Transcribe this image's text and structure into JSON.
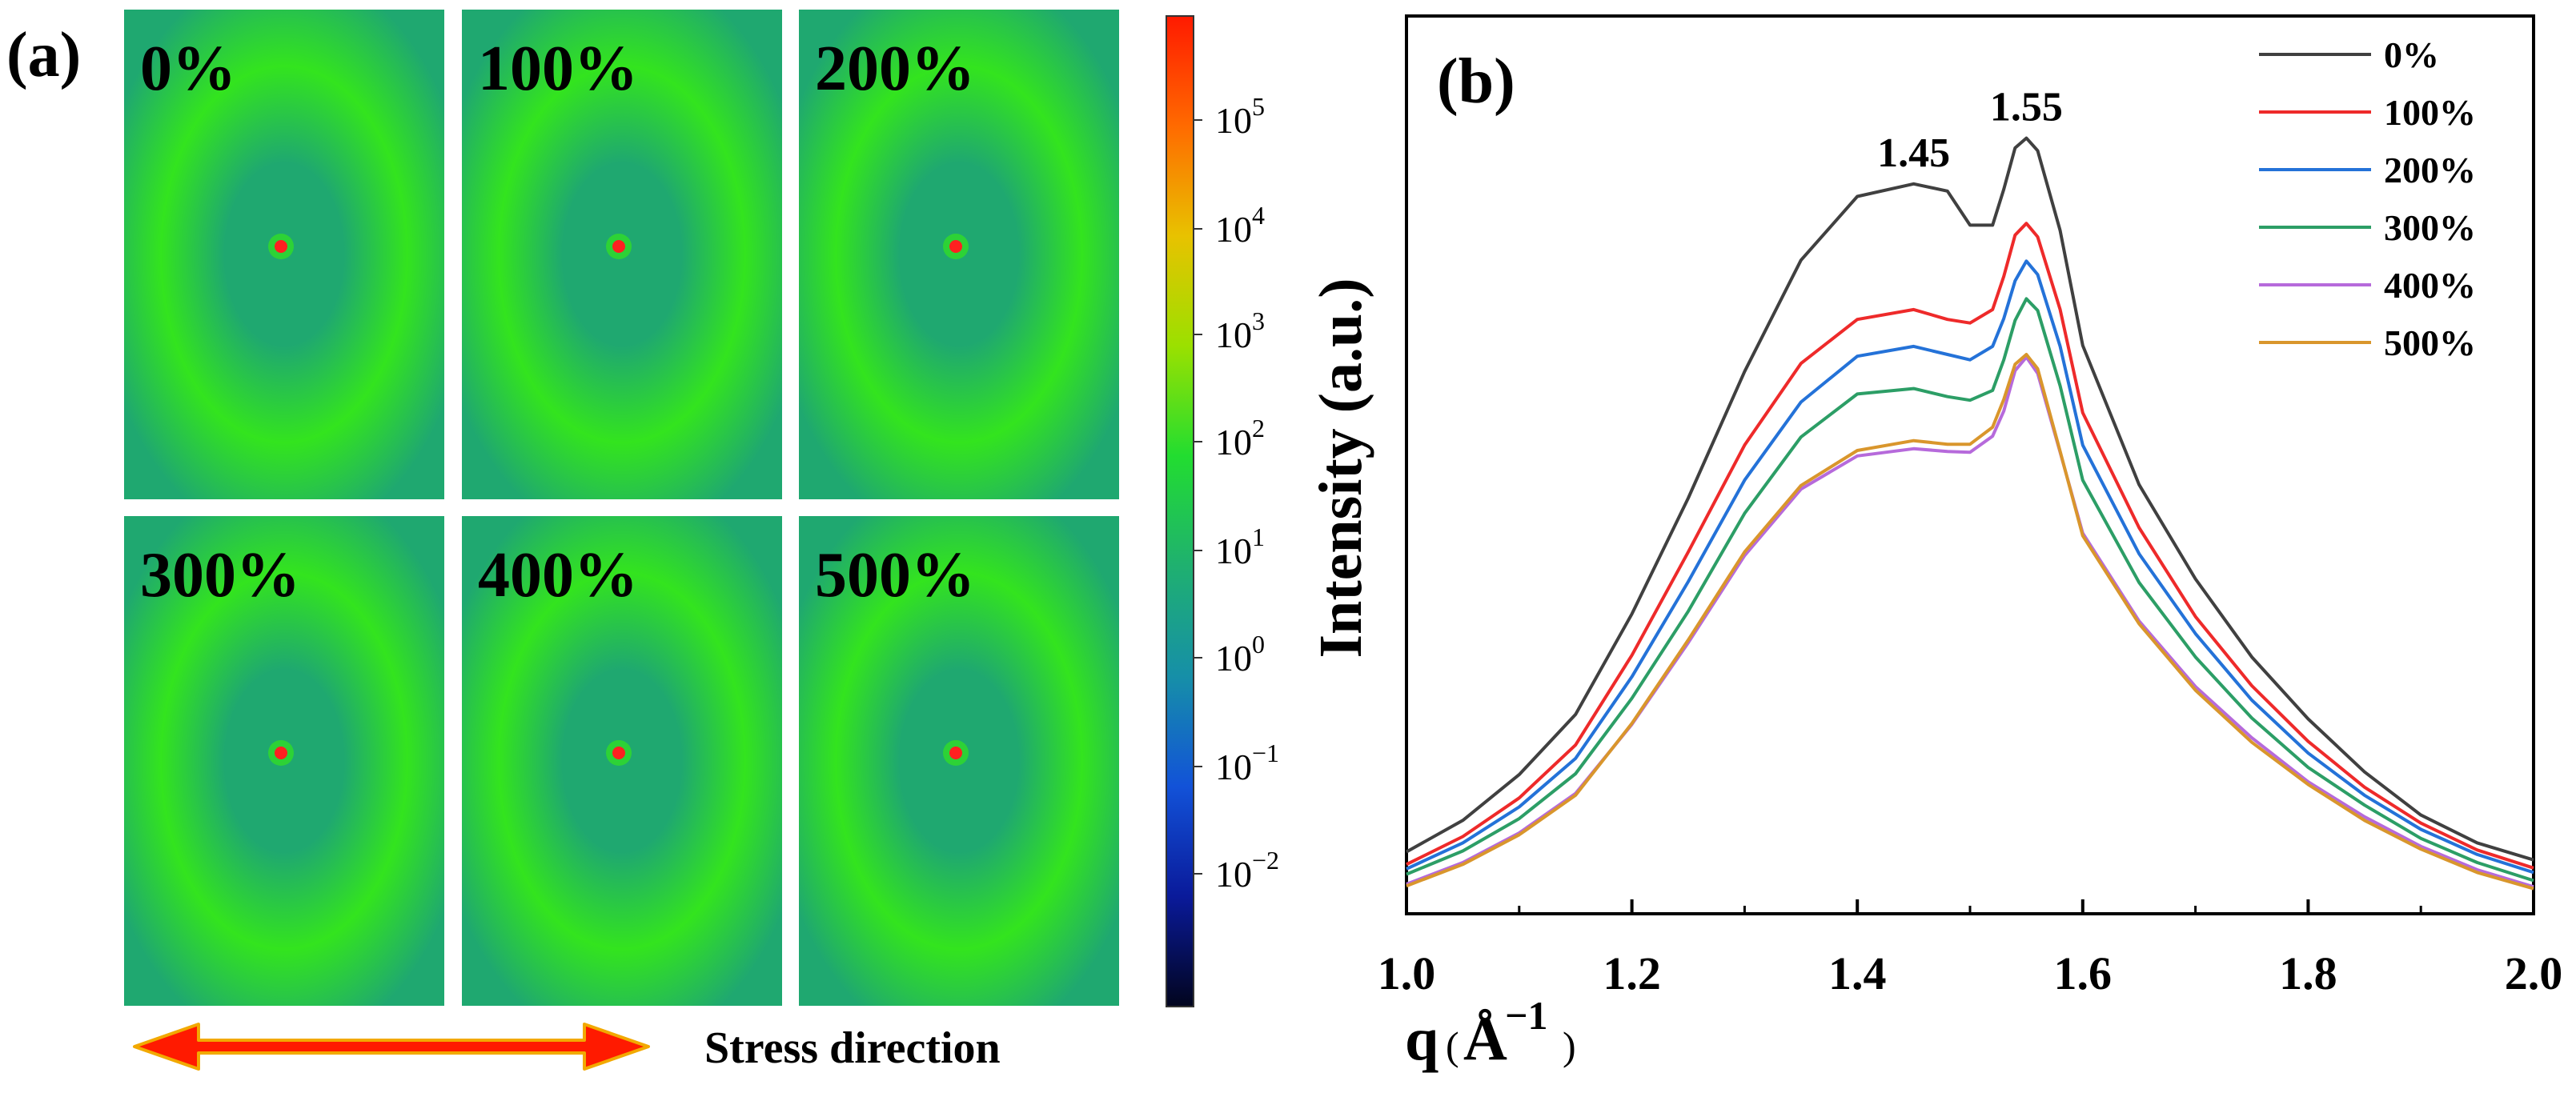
{
  "panel_a": {
    "label": "(a)",
    "tiles": [
      "0%",
      "100%",
      "200%",
      "300%",
      "400%",
      "500%"
    ],
    "colorbar": {
      "ticks": [
        {
          "base": "10",
          "exp": "5"
        },
        {
          "base": "10",
          "exp": "4"
        },
        {
          "base": "10",
          "exp": "3"
        },
        {
          "base": "10",
          "exp": "2"
        },
        {
          "base": "10",
          "exp": "1"
        },
        {
          "base": "10",
          "exp": "0"
        },
        {
          "base": "10",
          "exp": "−1"
        },
        {
          "base": "10",
          "exp": "−2"
        }
      ],
      "colors": [
        "#ff1a00",
        "#ff6a00",
        "#e8c200",
        "#9be000",
        "#22dd30",
        "#1fb070",
        "#168fa8",
        "#1252d8",
        "#0a1a9a",
        "#02051e"
      ]
    },
    "arrow_label": "Stress direction",
    "arrow_colors": {
      "fill": "#ff1a00",
      "edge": "#f2a900"
    },
    "tile_colors": {
      "base": "#1fa870",
      "ring": "#33e41e",
      "center": "#ff2020"
    }
  },
  "panel_b": {
    "label": "(b)",
    "chart_data": {
      "type": "line",
      "xlabel": "q (Å⁻¹)",
      "xlabel_main": "q",
      "xlabel_unit_open": "(",
      "xlabel_unit": "Å",
      "xlabel_exp": "−1",
      "xlabel_unit_close": ")",
      "ylabel": "Intensity (a.u.)",
      "xlim": [
        1.0,
        2.0
      ],
      "ylim": [
        0,
        100
      ],
      "xticks": [
        "1.0",
        "1.2",
        "1.4",
        "1.6",
        "1.8",
        "2.0"
      ],
      "x": [
        1.0,
        1.05,
        1.1,
        1.15,
        1.2,
        1.25,
        1.3,
        1.35,
        1.4,
        1.45,
        1.48,
        1.5,
        1.52,
        1.53,
        1.54,
        1.55,
        1.56,
        1.58,
        1.6,
        1.65,
        1.7,
        1.75,
        1.8,
        1.85,
        1.9,
        1.95,
        2.0
      ],
      "series": [
        {
          "name": "0%",
          "color": "#404040",
          "values": [
            6.9,
            10.4,
            15.5,
            22.2,
            33.4,
            46.3,
            60.4,
            72.8,
            79.9,
            81.3,
            80.5,
            76.7,
            76.7,
            80.7,
            85.3,
            86.4,
            85.0,
            76.1,
            63.3,
            47.8,
            37.3,
            28.6,
            21.7,
            15.8,
            11.0,
            7.9,
            6.0
          ]
        },
        {
          "name": "100%",
          "color": "#ee2a2a",
          "values": [
            5.5,
            8.6,
            12.9,
            18.8,
            28.8,
            40.3,
            52.2,
            61.3,
            66.2,
            67.3,
            66.2,
            65.8,
            67.3,
            71.0,
            75.6,
            76.9,
            75.4,
            67.3,
            55.8,
            43.0,
            33.1,
            25.4,
            19.2,
            14.1,
            10.1,
            7.1,
            5.1
          ]
        },
        {
          "name": "200%",
          "color": "#2472d8",
          "values": [
            5.0,
            7.9,
            11.9,
            17.3,
            26.4,
            37.0,
            48.3,
            57.0,
            62.1,
            63.2,
            62.3,
            61.7,
            63.2,
            66.3,
            70.5,
            72.7,
            71.2,
            63.2,
            52.2,
            40.1,
            31.2,
            23.8,
            17.9,
            13.2,
            9.4,
            6.6,
            4.6
          ]
        },
        {
          "name": "300%",
          "color": "#2c9e66",
          "values": [
            4.4,
            7.0,
            10.6,
            15.6,
            24.0,
            33.7,
            44.6,
            53.1,
            57.9,
            58.5,
            57.6,
            57.2,
            58.3,
            61.7,
            66.1,
            68.5,
            67.2,
            58.8,
            48.3,
            36.9,
            28.6,
            21.8,
            16.3,
            12.1,
            8.4,
            5.7,
            3.7
          ]
        },
        {
          "name": "400%",
          "color": "#b66adb",
          "values": [
            3.3,
            5.7,
            9.0,
            13.4,
            21.1,
            30.2,
            39.9,
            47.3,
            51.0,
            51.8,
            51.5,
            51.4,
            53.2,
            56.0,
            60.5,
            62.0,
            60.2,
            51.4,
            42.4,
            32.6,
            25.3,
            19.6,
            14.7,
            10.8,
            7.5,
            4.9,
            3.0
          ]
        },
        {
          "name": "500%",
          "color": "#d9962c",
          "values": [
            3.1,
            5.5,
            8.8,
            13.2,
            21.2,
            30.5,
            40.3,
            47.7,
            51.6,
            52.7,
            52.3,
            52.3,
            54.2,
            57.3,
            61.2,
            62.3,
            60.7,
            51.5,
            42.1,
            32.3,
            24.9,
            19.1,
            14.4,
            10.4,
            7.2,
            4.6,
            2.8
          ]
        }
      ],
      "annotations": [
        {
          "text": "1.45",
          "x": 1.45,
          "y": 81.3
        },
        {
          "text": "1.55",
          "x": 1.55,
          "y": 86.4
        }
      ],
      "legend_position": "top-right",
      "grid": false
    }
  }
}
